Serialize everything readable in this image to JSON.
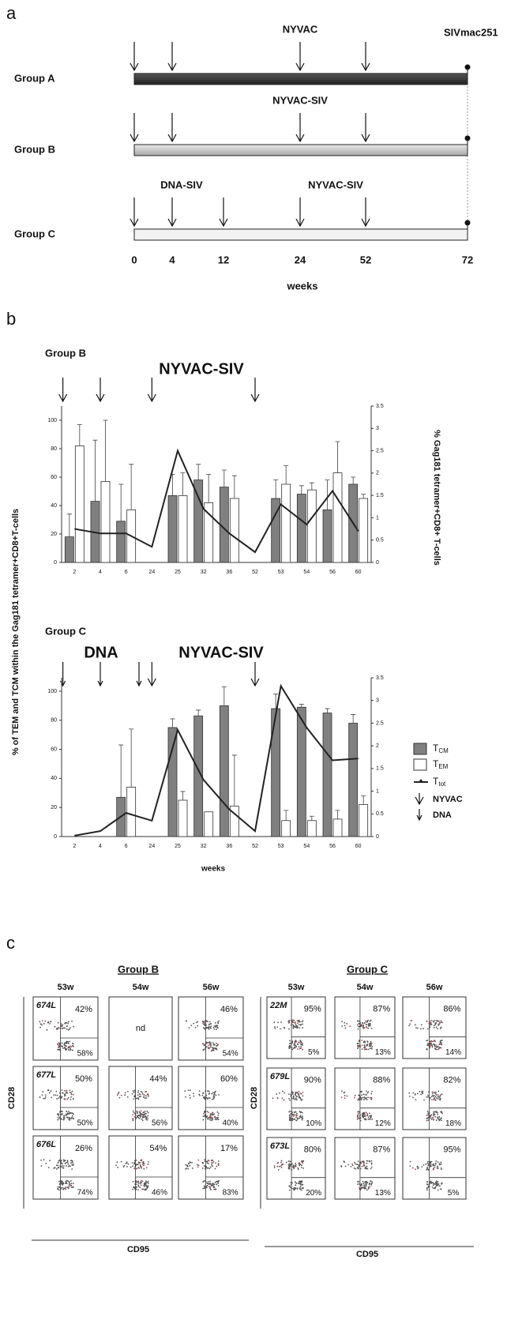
{
  "panel_a": {
    "label": "a",
    "xlabel": "weeks",
    "timepoints": [
      0,
      4,
      12,
      24,
      52,
      72
    ],
    "challenge": {
      "label": "SIVmac251",
      "week": 72
    },
    "groups": [
      {
        "name": "Group A",
        "vaccine_labels": [
          "NYVAC"
        ],
        "arrows": [
          0,
          4,
          24,
          52
        ]
      },
      {
        "name": "Group B",
        "vaccine_labels": [
          "NYVAC-SIV"
        ],
        "arrows": [
          0,
          4,
          24,
          52
        ]
      },
      {
        "name": "Group C",
        "vaccine_labels": [
          "DNA-SIV",
          "NYVAC-SIV"
        ],
        "arrows": [
          0,
          4,
          12,
          24,
          52
        ]
      }
    ]
  },
  "panel_b": {
    "label": "b",
    "ylabel": "% of TEM and TCM within the Gag181 tetramer+CD8+T-cells",
    "y2label": "% Gag181 tetramer+CD8+ T-cells"
  },
  "chart_data": [
    {
      "type": "bar",
      "group": "Group B",
      "categories": [
        "2",
        "4",
        "6",
        "24",
        "25",
        "32",
        "36",
        "52",
        "53",
        "54",
        "56",
        "60"
      ],
      "arrows": [
        {
          "kind": "NYVAC",
          "label": "NYVAC-SIV",
          "weeks": [
            0,
            4,
            24,
            52
          ]
        }
      ],
      "ylim": [
        0,
        100
      ],
      "yticks": [
        0,
        20,
        40,
        60,
        80,
        100
      ],
      "y2lim": [
        0,
        3.5
      ],
      "y2ticks": [
        0,
        0.5,
        1,
        1.5,
        2,
        2.5,
        3,
        3.5
      ],
      "series": [
        {
          "name": "T",
          "subscript": "CM",
          "color": "#808080",
          "values": [
            18,
            43,
            29,
            null,
            47,
            58,
            53,
            null,
            45,
            48,
            37,
            55
          ],
          "errors": [
            16,
            43,
            26,
            null,
            15,
            11,
            12,
            null,
            13,
            6,
            21,
            5
          ]
        },
        {
          "name": "T",
          "subscript": "EM",
          "color": "#ffffff",
          "values": [
            82,
            57,
            37,
            null,
            47,
            42,
            45,
            null,
            55,
            51,
            63,
            45
          ],
          "errors": [
            15,
            43,
            32,
            null,
            16,
            20,
            16,
            null,
            13,
            5,
            22,
            3
          ]
        },
        {
          "name": "T",
          "subscript": "tot",
          "color": "#222222",
          "axis": "y2",
          "values": [
            0.75,
            0.65,
            0.65,
            0.35,
            2.5,
            1.2,
            0.65,
            0.23,
            1.3,
            0.85,
            1.6,
            0.7
          ]
        }
      ]
    },
    {
      "type": "bar",
      "group": "Group C",
      "xlabel": "weeks",
      "categories": [
        "2",
        "4",
        "6",
        "24",
        "25",
        "32",
        "36",
        "52",
        "53",
        "54",
        "56",
        "60"
      ],
      "arrows": [
        {
          "kind": "NYVAC",
          "label": "NYVAC-SIV",
          "weeks": [
            24,
            52
          ]
        },
        {
          "kind": "DNA",
          "label": "DNA",
          "weeks": [
            0,
            4,
            12
          ]
        }
      ],
      "ylim": [
        0,
        100
      ],
      "yticks": [
        0,
        20,
        40,
        60,
        80,
        100
      ],
      "y2lim": [
        0,
        3.5
      ],
      "y2ticks": [
        0,
        0.5,
        1,
        1.5,
        2,
        2.5,
        3,
        3.5
      ],
      "series": [
        {
          "name": "T",
          "subscript": "CM",
          "color": "#808080",
          "values": [
            null,
            null,
            27,
            null,
            75,
            83,
            90,
            null,
            88,
            89,
            85,
            78
          ],
          "errors": [
            null,
            null,
            36,
            null,
            6,
            4,
            13,
            null,
            10,
            2,
            3,
            6
          ]
        },
        {
          "name": "T",
          "subscript": "EM",
          "color": "#ffffff",
          "values": [
            null,
            null,
            34,
            null,
            25,
            17,
            21,
            null,
            11,
            11,
            12,
            22
          ],
          "errors": [
            null,
            null,
            40,
            null,
            6,
            null,
            35,
            null,
            7,
            3,
            6,
            6
          ]
        },
        {
          "name": "T",
          "subscript": "tot",
          "color": "#222222",
          "axis": "y2",
          "values": [
            0.02,
            0.12,
            0.52,
            0.35,
            2.35,
            1.25,
            0.6,
            0.12,
            3.32,
            2.4,
            1.68,
            1.72
          ]
        }
      ]
    }
  ],
  "panel_c": {
    "label": "c",
    "x_axis": "CD95",
    "y_axis": "CD28",
    "groups": [
      {
        "name": "Group B",
        "timepoints": [
          "53w",
          "54w",
          "56w"
        ],
        "animals": [
          {
            "id": "674L",
            "plots": [
              {
                "upper": "42%",
                "lower": "58%"
              },
              {
                "text": "nd"
              },
              {
                "upper": "46%",
                "lower": "54%"
              }
            ]
          },
          {
            "id": "677L",
            "plots": [
              {
                "upper": "50%",
                "lower": "50%"
              },
              {
                "upper": "44%",
                "lower": "56%"
              },
              {
                "upper": "60%",
                "lower": "40%"
              }
            ]
          },
          {
            "id": "676L",
            "plots": [
              {
                "upper": "26%",
                "lower": "74%"
              },
              {
                "upper": "54%",
                "lower": "46%"
              },
              {
                "upper": "17%",
                "lower": "83%"
              }
            ]
          }
        ]
      },
      {
        "name": "Group C",
        "timepoints": [
          "53w",
          "54w",
          "56w"
        ],
        "animals": [
          {
            "id": "22M",
            "plots": [
              {
                "upper": "95%",
                "lower": "5%"
              },
              {
                "upper": "87%",
                "lower": "13%"
              },
              {
                "upper": "86%",
                "lower": "14%"
              }
            ]
          },
          {
            "id": "679L",
            "plots": [
              {
                "upper": "90%",
                "lower": "10%"
              },
              {
                "upper": "88%",
                "lower": "12%"
              },
              {
                "upper": "82%",
                "lower": "18%"
              }
            ]
          },
          {
            "id": "673L",
            "plots": [
              {
                "upper": "80%",
                "lower": "20%"
              },
              {
                "upper": "87%",
                "lower": "13%"
              },
              {
                "upper": "95%",
                "lower": "5%"
              }
            ]
          }
        ]
      }
    ]
  }
}
